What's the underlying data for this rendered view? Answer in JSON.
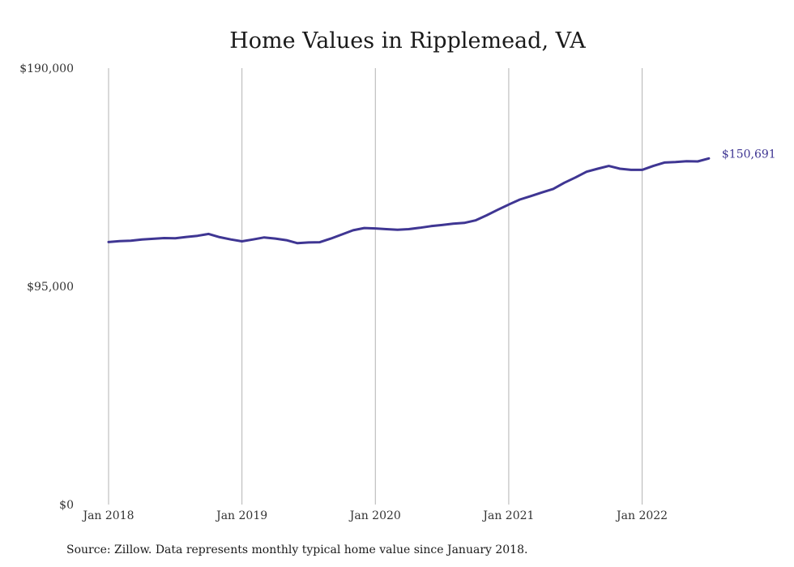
{
  "chart_data": {
    "type": "line",
    "title": "Home Values in Ripplemead, VA",
    "xlabel": "",
    "ylabel": "",
    "ylim": [
      0,
      190000
    ],
    "y_ticks": [
      {
        "value": 0,
        "label": "$0"
      },
      {
        "value": 95000,
        "label": "$95,000"
      },
      {
        "value": 190000,
        "label": "$190,000"
      }
    ],
    "x_ticks": [
      {
        "month_index": 0,
        "label": "Jan 2018"
      },
      {
        "month_index": 12,
        "label": "Jan 2019"
      },
      {
        "month_index": 24,
        "label": "Jan 2020"
      },
      {
        "month_index": 36,
        "label": "Jan 2021"
      },
      {
        "month_index": 48,
        "label": "Jan 2022"
      }
    ],
    "x_grid": true,
    "y_grid": false,
    "series": [
      {
        "color": "#3f3693",
        "end_label": "$150,691",
        "x": [
          "2018-01",
          "2018-02",
          "2018-03",
          "2018-04",
          "2018-05",
          "2018-06",
          "2018-07",
          "2018-08",
          "2018-09",
          "2018-10",
          "2018-11",
          "2018-12",
          "2019-01",
          "2019-02",
          "2019-03",
          "2019-04",
          "2019-05",
          "2019-06",
          "2019-07",
          "2019-08",
          "2019-09",
          "2019-10",
          "2019-11",
          "2019-12",
          "2020-01",
          "2020-02",
          "2020-03",
          "2020-04",
          "2020-05",
          "2020-06",
          "2020-07",
          "2020-08",
          "2020-09",
          "2020-10",
          "2020-11",
          "2020-12",
          "2021-01",
          "2021-02",
          "2021-03",
          "2021-04",
          "2021-05",
          "2021-06",
          "2021-07",
          "2021-08",
          "2021-09",
          "2021-10",
          "2021-11",
          "2021-12",
          "2022-01",
          "2022-02",
          "2022-03",
          "2022-04",
          "2022-05",
          "2022-06",
          "2022-07"
        ],
        "values": [
          114300,
          114700,
          114900,
          115400,
          115700,
          116000,
          115900,
          116500,
          117000,
          117800,
          116400,
          115400,
          114600,
          115400,
          116300,
          115800,
          115100,
          113800,
          114100,
          114200,
          115800,
          117600,
          119400,
          120400,
          120200,
          119900,
          119600,
          119900,
          120500,
          121200,
          121700,
          122300,
          122600,
          123700,
          125900,
          128300,
          130600,
          132800,
          134300,
          135900,
          137400,
          140100,
          142400,
          144900,
          146200,
          147400,
          146200,
          145700,
          145700,
          147400,
          148900,
          149100,
          149500,
          149400,
          150691
        ]
      }
    ]
  },
  "source": "Source: Zillow. Data represents monthly typical home value since January 2018."
}
